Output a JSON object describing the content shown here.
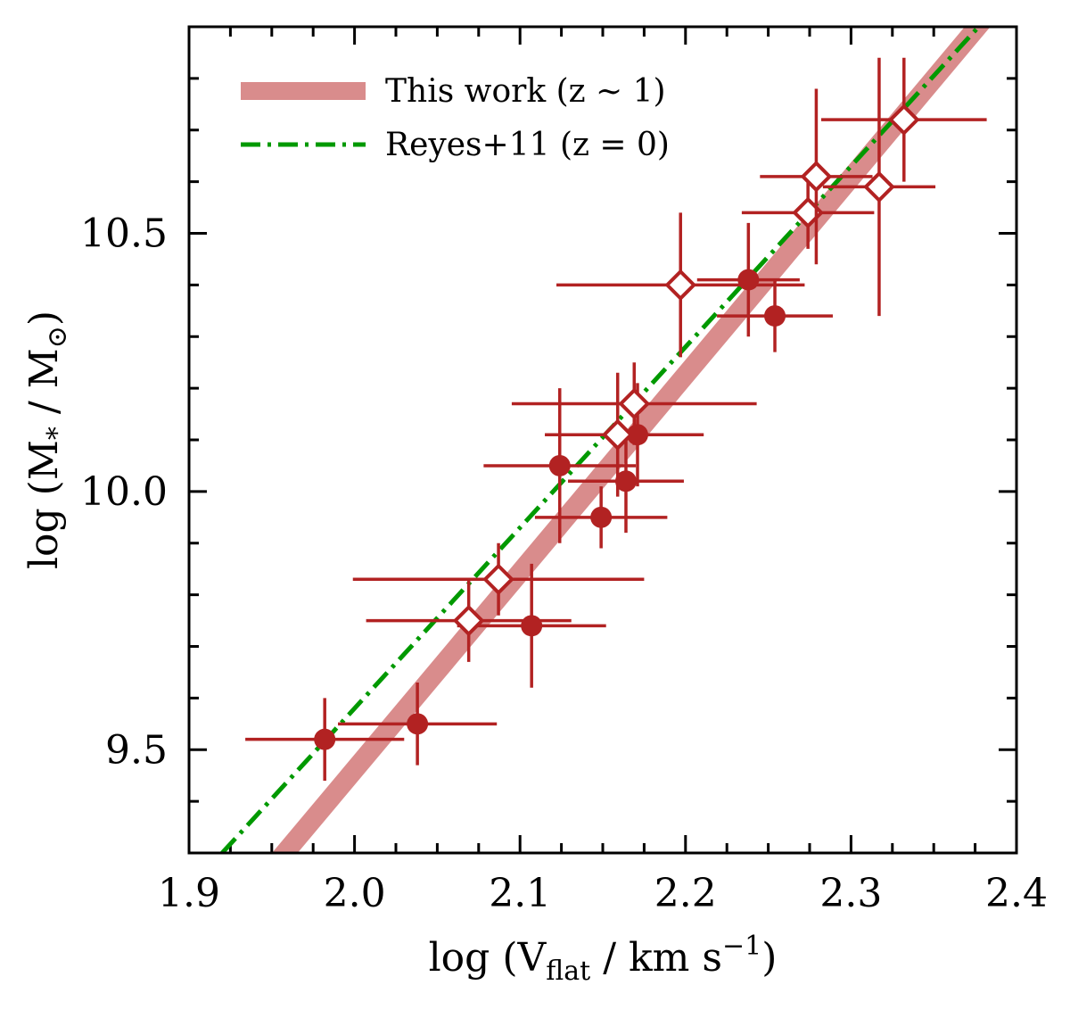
{
  "chart_data": {
    "type": "scatter",
    "xlabel": "log (V_flat / km s^-1)",
    "ylabel": "log (M_* / M_sun)",
    "xlabel_parts": {
      "pre": "log (V",
      "sub": "flat",
      "mid": " / km s",
      "sup": "−1",
      "post": ")"
    },
    "ylabel_parts": {
      "pre": "log (M",
      "sub1": "*",
      "mid": " / M",
      "sub2": "⊙",
      "post": ")"
    },
    "xlim": [
      1.9,
      2.4
    ],
    "ylim": [
      9.3,
      10.9
    ],
    "xticks": [
      "1.9",
      "2.0",
      "2.1",
      "2.2",
      "2.3",
      "2.4"
    ],
    "yticks": [
      "9.5",
      "10.0",
      "10.5"
    ],
    "legend_position": "top-left",
    "colors": {
      "points": "#b22222",
      "fit": "#d98c8c",
      "reyes": "#009900"
    },
    "lines": [
      {
        "name": "This work (z ∼ 1)",
        "style": "thick-solid",
        "x": [
          1.95,
          2.4
        ],
        "y": [
          9.27,
          10.99
        ]
      },
      {
        "name": "Reyes+11 (z = 0)",
        "style": "dash-dot",
        "x": [
          1.92,
          2.4
        ],
        "y": [
          9.3,
          10.98
        ]
      }
    ],
    "series": [
      {
        "name": "filled",
        "marker": "circle",
        "points": [
          {
            "x": 1.982,
            "y": 9.52,
            "xerr": 0.048,
            "yerr": 0.08
          },
          {
            "x": 2.038,
            "y": 9.55,
            "xerr": 0.048,
            "yerr": 0.08
          },
          {
            "x": 2.107,
            "y": 9.74,
            "xerr": 0.045,
            "yerr": 0.12
          },
          {
            "x": 2.124,
            "y": 10.05,
            "xerr": 0.046,
            "yerr": 0.15
          },
          {
            "x": 2.149,
            "y": 9.95,
            "xerr": 0.04,
            "yerr": 0.06
          },
          {
            "x": 2.164,
            "y": 10.02,
            "xerr": 0.035,
            "yerr": 0.1
          },
          {
            "x": 2.171,
            "y": 10.11,
            "xerr": 0.04,
            "yerr": 0.1
          },
          {
            "x": 2.238,
            "y": 10.41,
            "xerr": 0.031,
            "yerr": 0.11
          },
          {
            "x": 2.254,
            "y": 10.34,
            "xerr": 0.035,
            "yerr": 0.07
          }
        ]
      },
      {
        "name": "open",
        "marker": "diamond",
        "points": [
          {
            "x": 2.069,
            "y": 9.75,
            "xerr": 0.062,
            "yerr": 0.08
          },
          {
            "x": 2.087,
            "y": 9.83,
            "xerr": 0.088,
            "yerr": 0.07
          },
          {
            "x": 2.159,
            "y": 10.11,
            "xerr": 0.044,
            "yerr": 0.12
          },
          {
            "x": 2.169,
            "y": 10.17,
            "xerr": 0.074,
            "yerr": 0.08
          },
          {
            "x": 2.197,
            "y": 10.4,
            "xerr": 0.075,
            "yerr": 0.14
          },
          {
            "x": 2.274,
            "y": 10.54,
            "xerr": 0.04,
            "yerr": 0.07
          },
          {
            "x": 2.279,
            "y": 10.61,
            "xerr": 0.034,
            "yerr": 0.17
          },
          {
            "x": 2.317,
            "y": 10.59,
            "xerr": 0.034,
            "yerr": 0.25
          },
          {
            "x": 2.332,
            "y": 10.72,
            "xerr": 0.05,
            "yerr": 0.12
          }
        ]
      }
    ]
  }
}
